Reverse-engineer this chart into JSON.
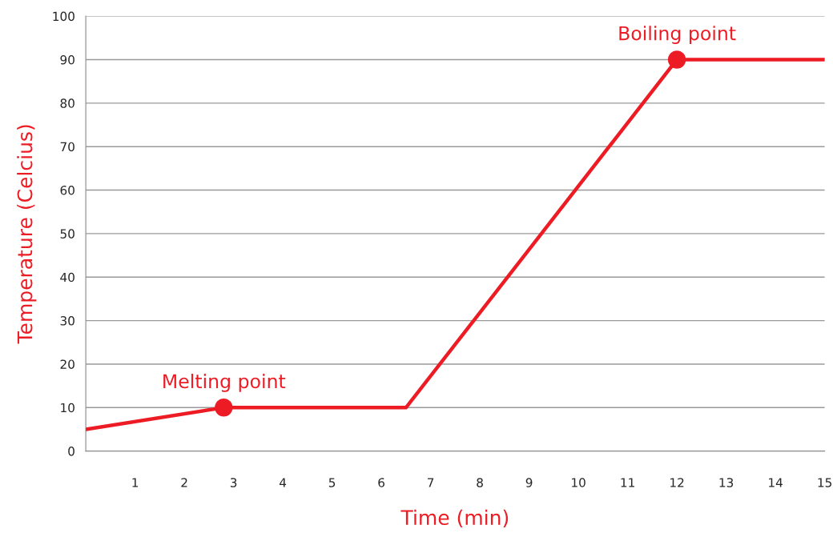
{
  "chart_data": {
    "type": "line",
    "xlabel": "Time (min)",
    "ylabel": "Temperature (Celcius)",
    "xlim": [
      0,
      15
    ],
    "xticks": [
      {
        "value": 0,
        "label": null
      },
      1,
      2,
      3,
      4,
      5,
      6,
      7,
      8,
      9,
      10,
      11,
      12,
      13,
      14,
      15
    ],
    "ylim": [
      0,
      100
    ],
    "yticks": [
      0,
      10,
      20,
      30,
      40,
      50,
      60,
      70,
      80,
      90,
      100
    ],
    "grid": "y",
    "series": [
      {
        "color": "#ed1c24",
        "marker": "none",
        "line_style": "solid",
        "x": [
          0,
          2.8,
          6.5,
          12,
          15
        ],
        "values": [
          5,
          10,
          10,
          90,
          90
        ]
      },
      {
        "type": "scatter",
        "color": "#ed1c24",
        "marker": "circle",
        "x": [
          2.8,
          12
        ],
        "values": [
          10,
          90
        ]
      }
    ],
    "annotations": [
      {
        "text": "Melting point",
        "x": 2.8,
        "y": 10
      },
      {
        "text": "Boiling point",
        "x": 12,
        "y": 90
      }
    ]
  }
}
